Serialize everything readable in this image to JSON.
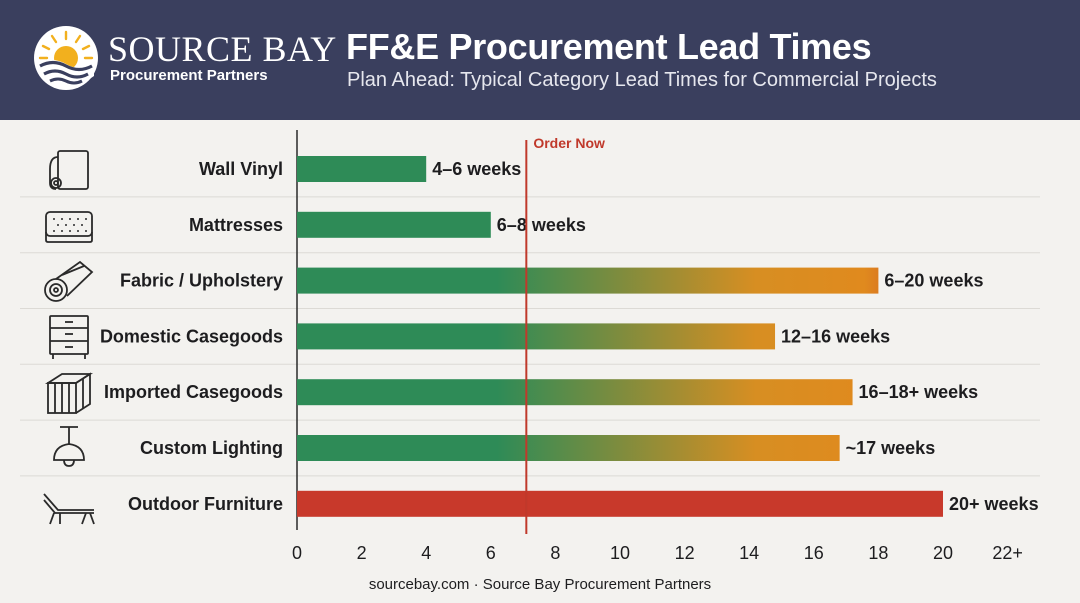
{
  "header": {
    "brand_name": "SOURCE BAY",
    "brand_sub": "Procurement Partners",
    "title": "FF&E Procurement Lead Times",
    "subtitle": "Plan Ahead: Typical Category Lead Times for Commercial Projects"
  },
  "footer": {
    "text": "sourcebay.com · Source Bay Procurement Partners"
  },
  "colors": {
    "header_bg": "#3a3f5e",
    "green": "#2e8b57",
    "orange": "#e08a1e",
    "red": "#c8392b",
    "marker": "#c0392b"
  },
  "icons": [
    "wallpaper-roll-icon",
    "mattress-icon",
    "fabric-roll-icon",
    "dresser-icon",
    "shipping-crate-icon",
    "pendant-lamp-icon",
    "lounge-chair-icon"
  ],
  "chart_data": {
    "type": "bar",
    "orientation": "horizontal",
    "unit": "weeks",
    "categories": [
      "Wall Vinyl",
      "Mattresses",
      "Fabric / Upholstery",
      "Domestic Casegoods",
      "Imported Casegoods",
      "Custom Lighting",
      "Outdoor Furniture"
    ],
    "values": [
      4,
      6,
      18,
      14.8,
      17.2,
      16.8,
      20
    ],
    "ranges": [
      [
        4,
        6
      ],
      [
        6,
        8
      ],
      [
        6,
        20
      ],
      [
        12,
        16
      ],
      [
        16,
        18
      ],
      [
        17,
        17
      ],
      [
        20,
        20
      ]
    ],
    "data_labels": [
      "4–6 weeks",
      "6–8 weeks",
      "6–20 weeks",
      "12–16 weeks",
      "16–18+ weeks",
      "~17 weeks",
      "20+ weeks"
    ],
    "xlim": [
      0,
      22
    ],
    "xticks": [
      "0",
      "2",
      "4",
      "6",
      "8",
      "10",
      "12",
      "14",
      "16",
      "18",
      "20",
      "22+"
    ],
    "marker": {
      "label": "Order Now",
      "x": 7.1
    },
    "grid": true
  }
}
